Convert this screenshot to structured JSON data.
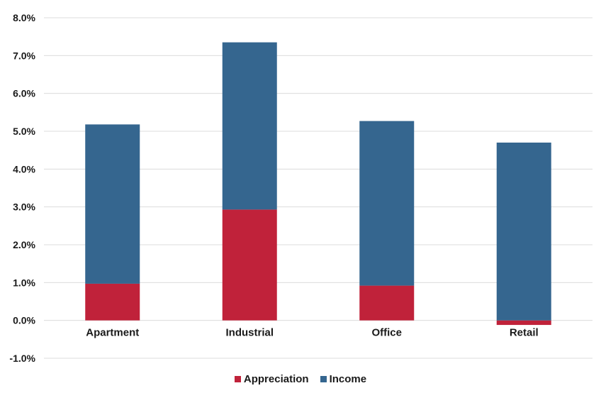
{
  "chart_data": {
    "type": "bar",
    "stacked": true,
    "categories": [
      "Apartment",
      "Industrial",
      "Office",
      "Retail"
    ],
    "series": [
      {
        "name": "Appreciation",
        "color": "#c0223a",
        "values": [
          0.97,
          2.93,
          0.92,
          -0.12
        ]
      },
      {
        "name": "Income",
        "color": "#35668f",
        "values": [
          4.21,
          4.42,
          4.35,
          4.7
        ]
      }
    ],
    "ylim": [
      -1.0,
      8.0
    ],
    "yticks": [
      "-1.0%",
      "0.0%",
      "1.0%",
      "2.0%",
      "3.0%",
      "4.0%",
      "5.0%",
      "6.0%",
      "7.0%",
      "8.0%"
    ],
    "ytick_values": [
      -1,
      0,
      1,
      2,
      3,
      4,
      5,
      6,
      7,
      8
    ],
    "grid": true,
    "legend_position": "bottom",
    "title": "",
    "xlabel": "",
    "ylabel": ""
  }
}
